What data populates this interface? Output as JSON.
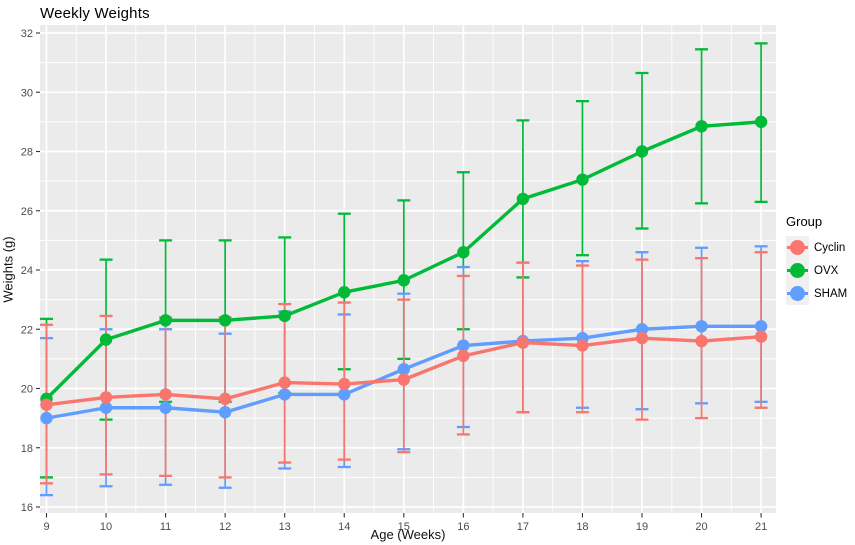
{
  "chart_data": {
    "type": "line",
    "title": "Weekly Weights",
    "xlabel": "Age (Weeks)",
    "ylabel": "Weights (g)",
    "legend_title": "Group",
    "legend_position": "right",
    "grid": true,
    "panel_bg": "#EBEBEB",
    "grid_color": "#FFFFFF",
    "tick_label_color": "#4D4D4D",
    "x": [
      9,
      10,
      11,
      12,
      13,
      14,
      15,
      16,
      17,
      18,
      19,
      20,
      21
    ],
    "xticks": [
      9,
      10,
      11,
      12,
      13,
      14,
      15,
      16,
      17,
      18,
      19,
      20,
      21
    ],
    "yticks": [
      16,
      18,
      20,
      22,
      24,
      26,
      28,
      30,
      32
    ],
    "xlim": [
      8.9,
      21.25
    ],
    "ylim": [
      15.8,
      32.25
    ],
    "error_bars": true,
    "series": [
      {
        "name": "Cyclin",
        "color": "#F8766D",
        "values": [
          19.45,
          19.7,
          19.8,
          19.65,
          20.2,
          20.15,
          20.3,
          21.1,
          21.55,
          21.45,
          21.7,
          21.6,
          21.75
        ],
        "upper": [
          22.15,
          22.45,
          22.4,
          22.4,
          22.85,
          22.9,
          23.0,
          23.8,
          24.25,
          24.15,
          24.35,
          24.4,
          24.6
        ],
        "lower": [
          16.8,
          17.1,
          17.05,
          17.0,
          17.5,
          17.6,
          17.85,
          18.45,
          19.2,
          19.2,
          18.95,
          19.0,
          19.35
        ]
      },
      {
        "name": "OVX",
        "color": "#00BA38",
        "values": [
          19.65,
          21.65,
          22.3,
          22.3,
          22.45,
          23.25,
          23.65,
          24.6,
          26.4,
          27.05,
          28.0,
          28.85,
          29.0
        ],
        "upper": [
          22.35,
          24.35,
          25.0,
          25.0,
          25.1,
          25.9,
          26.35,
          27.3,
          29.05,
          29.7,
          30.65,
          31.45,
          31.65
        ],
        "lower": [
          17.0,
          18.95,
          19.55,
          19.55,
          19.85,
          20.65,
          21.0,
          22.0,
          23.75,
          24.5,
          25.4,
          26.25,
          26.3
        ]
      },
      {
        "name": "SHAM",
        "color": "#619CFF",
        "values": [
          19.0,
          19.35,
          19.35,
          19.2,
          19.8,
          19.8,
          20.65,
          21.45,
          21.6,
          21.7,
          22.0,
          22.1,
          22.1
        ],
        "upper": [
          21.7,
          22.0,
          22.0,
          21.85,
          22.6,
          22.5,
          23.2,
          24.1,
          24.25,
          24.3,
          24.6,
          24.75,
          24.8
        ],
        "lower": [
          16.4,
          16.7,
          16.75,
          16.65,
          17.3,
          17.35,
          17.95,
          18.7,
          19.2,
          19.35,
          19.3,
          19.5,
          19.55
        ]
      }
    ]
  }
}
